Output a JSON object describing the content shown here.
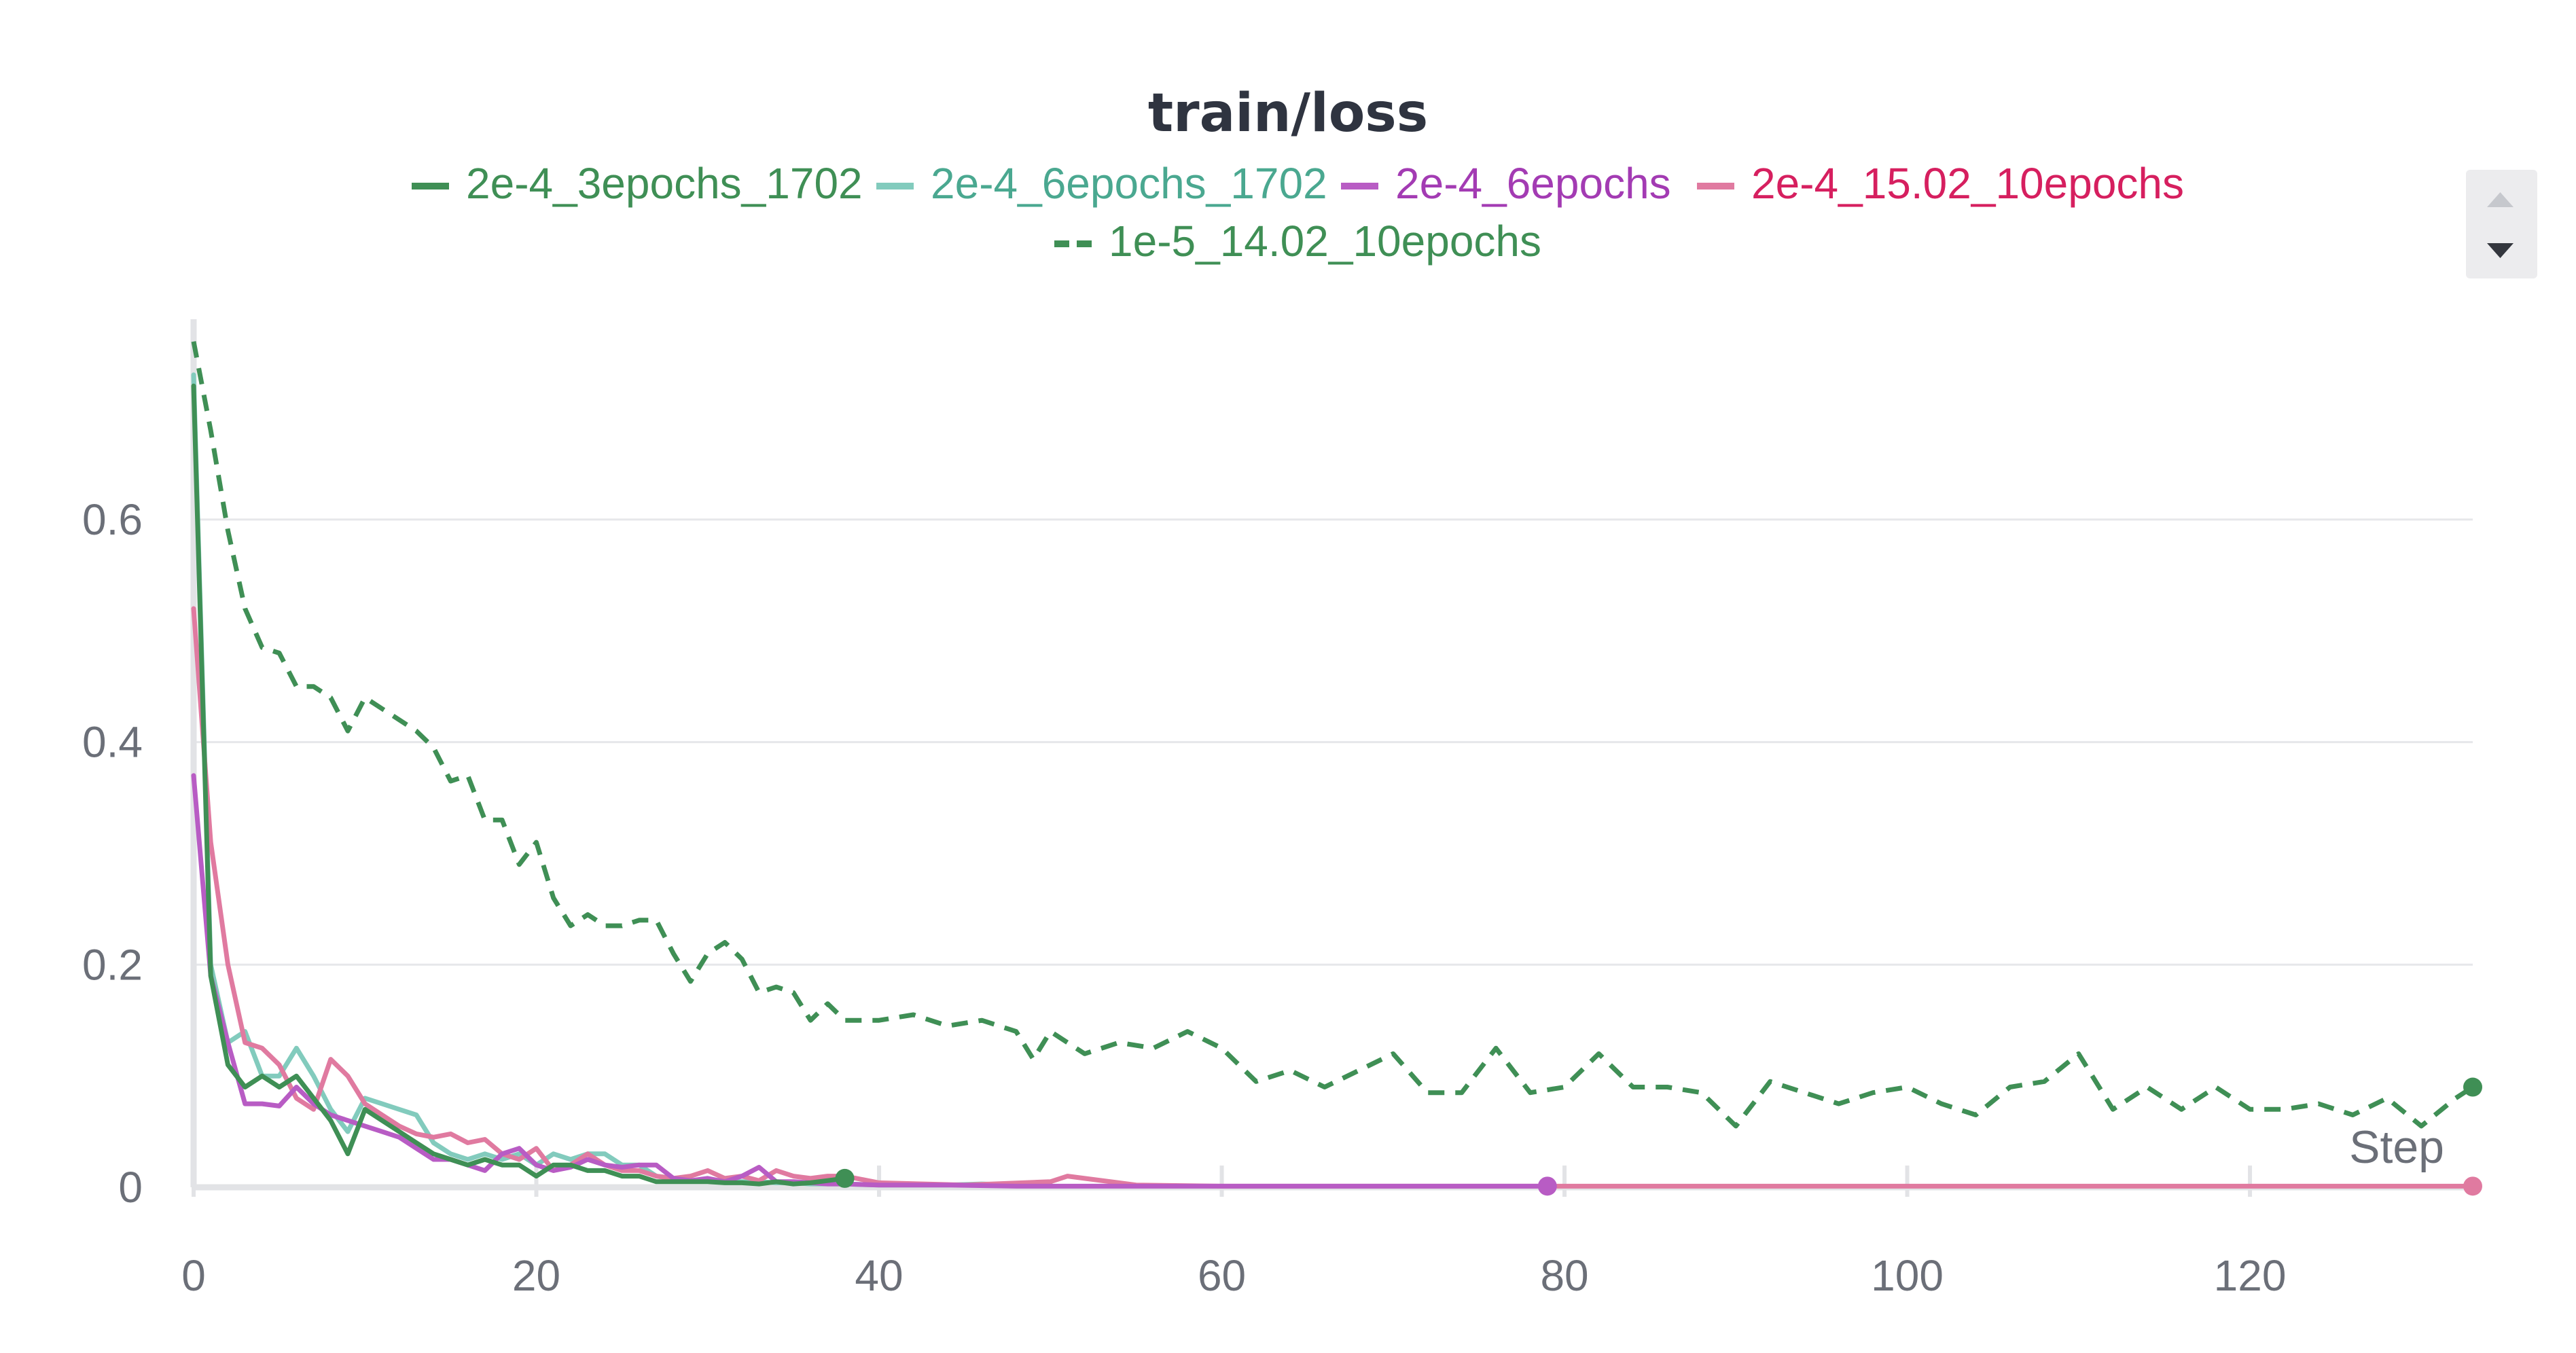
{
  "chart_data": {
    "type": "line",
    "title": "train/loss",
    "xlabel": "Step",
    "ylabel": "",
    "xlim": [
      0,
      133
    ],
    "ylim": [
      0,
      0.78
    ],
    "xticks": [
      0,
      20,
      40,
      60,
      80,
      100,
      120
    ],
    "yticks": [
      0,
      0.2,
      0.4,
      0.6
    ],
    "grid": true,
    "legend_placement": "top",
    "series": [
      {
        "name": "2e-4_3epochs_1702",
        "color": "#3f8f55",
        "label_color": "#3f8f55",
        "dash": "solid",
        "end_marker": true,
        "x": [
          0,
          1,
          2,
          3,
          4,
          5,
          6,
          7,
          8,
          9,
          10,
          11,
          12,
          13,
          14,
          15,
          16,
          17,
          18,
          19,
          20,
          21,
          22,
          23,
          24,
          25,
          26,
          27,
          28,
          29,
          30,
          31,
          32,
          33,
          34,
          35,
          36,
          37,
          38
        ],
        "y": [
          0.72,
          0.19,
          0.11,
          0.09,
          0.1,
          0.09,
          0.1,
          0.08,
          0.06,
          0.03,
          0.07,
          0.06,
          0.05,
          0.04,
          0.03,
          0.025,
          0.02,
          0.025,
          0.02,
          0.02,
          0.01,
          0.02,
          0.02,
          0.015,
          0.015,
          0.01,
          0.01,
          0.005,
          0.005,
          0.005,
          0.005,
          0.004,
          0.004,
          0.003,
          0.005,
          0.003,
          0.004,
          0.006,
          0.008
        ]
      },
      {
        "name": "2e-4_6epochs_1702",
        "color": "#82cbbd",
        "label_color": "#4aa890",
        "dash": "solid",
        "end_marker": false,
        "x": [
          0,
          1,
          2,
          3,
          4,
          5,
          6,
          7,
          8,
          9,
          10,
          11,
          12,
          13,
          14,
          15,
          16,
          17,
          18,
          19,
          20,
          21,
          22,
          23,
          24,
          25,
          26,
          27,
          28,
          29,
          30,
          31,
          32,
          33,
          34,
          35,
          36,
          37,
          38,
          40,
          42,
          44,
          46,
          48,
          50
        ],
        "y": [
          0.73,
          0.2,
          0.13,
          0.14,
          0.1,
          0.1,
          0.125,
          0.1,
          0.07,
          0.05,
          0.08,
          0.075,
          0.07,
          0.065,
          0.04,
          0.03,
          0.025,
          0.03,
          0.025,
          0.03,
          0.02,
          0.03,
          0.025,
          0.03,
          0.03,
          0.02,
          0.02,
          0.01,
          0.008,
          0.006,
          0.006,
          0.005,
          0.005,
          0.005,
          0.004,
          0.004,
          0.003,
          0.003,
          0.003,
          0.002,
          0.002,
          0.002,
          0.003,
          0.002,
          0.002
        ]
      },
      {
        "name": "2e-4_6epochs",
        "color": "#b85cc4",
        "label_color": "#a33bb3",
        "dash": "solid",
        "end_marker": true,
        "x": [
          0,
          1,
          2,
          3,
          4,
          5,
          6,
          7,
          8,
          9,
          10,
          11,
          12,
          13,
          14,
          15,
          16,
          17,
          18,
          19,
          20,
          21,
          22,
          23,
          24,
          25,
          26,
          27,
          28,
          29,
          30,
          31,
          32,
          33,
          34,
          35,
          36,
          37,
          38,
          40,
          44,
          48,
          52,
          56,
          60,
          64,
          68,
          72,
          76,
          79
        ],
        "y": [
          0.37,
          0.19,
          0.13,
          0.075,
          0.075,
          0.073,
          0.09,
          0.075,
          0.065,
          0.06,
          0.055,
          0.05,
          0.045,
          0.035,
          0.025,
          0.025,
          0.02,
          0.015,
          0.03,
          0.035,
          0.02,
          0.015,
          0.018,
          0.025,
          0.02,
          0.018,
          0.02,
          0.02,
          0.008,
          0.006,
          0.008,
          0.005,
          0.01,
          0.018,
          0.005,
          0.005,
          0.004,
          0.003,
          0.003,
          0.002,
          0.002,
          0.001,
          0.001,
          0.001,
          0.001,
          0.001,
          0.001,
          0.001,
          0.001,
          0.001
        ]
      },
      {
        "name": "2e-4_15.02_10epochs",
        "color": "#e07aa0",
        "label_color": "#d61f5f",
        "dash": "solid",
        "end_marker": true,
        "x": [
          0,
          1,
          2,
          3,
          4,
          5,
          6,
          7,
          8,
          9,
          10,
          11,
          12,
          13,
          14,
          15,
          16,
          17,
          18,
          19,
          20,
          21,
          22,
          23,
          24,
          25,
          26,
          27,
          28,
          29,
          30,
          31,
          32,
          33,
          34,
          35,
          36,
          37,
          38,
          40,
          45,
          50,
          51,
          55,
          60,
          70,
          80,
          90,
          100,
          110,
          120,
          133
        ],
        "y": [
          0.52,
          0.31,
          0.2,
          0.13,
          0.125,
          0.11,
          0.08,
          0.07,
          0.115,
          0.1,
          0.075,
          0.065,
          0.055,
          0.048,
          0.045,
          0.048,
          0.04,
          0.043,
          0.03,
          0.025,
          0.035,
          0.015,
          0.02,
          0.03,
          0.02,
          0.015,
          0.015,
          0.01,
          0.008,
          0.01,
          0.015,
          0.008,
          0.01,
          0.006,
          0.015,
          0.01,
          0.008,
          0.01,
          0.01,
          0.004,
          0.002,
          0.005,
          0.01,
          0.002,
          0.001,
          0.001,
          0.001,
          0.001,
          0.001,
          0.001,
          0.001,
          0.001
        ]
      },
      {
        "name": "1e-5_14.02_10epochs",
        "color": "#3f8f55",
        "label_color": "#3f8f55",
        "dash": "dashed",
        "end_marker": true,
        "x": [
          0,
          1,
          2,
          3,
          4,
          5,
          6,
          7,
          8,
          9,
          10,
          11,
          12,
          13,
          14,
          15,
          16,
          17,
          18,
          19,
          20,
          21,
          22,
          23,
          24,
          25,
          26,
          27,
          28,
          29,
          30,
          31,
          32,
          33,
          34,
          35,
          36,
          37,
          38,
          40,
          42,
          44,
          46,
          48,
          49,
          50,
          52,
          54,
          56,
          58,
          60,
          62,
          64,
          66,
          68,
          70,
          72,
          74,
          76,
          78,
          80,
          82,
          84,
          86,
          88,
          90,
          92,
          94,
          96,
          98,
          100,
          102,
          104,
          106,
          108,
          110,
          112,
          114,
          116,
          118,
          120,
          122,
          124,
          126,
          128,
          130,
          132,
          133
        ],
        "y": [
          0.76,
          0.68,
          0.59,
          0.52,
          0.485,
          0.48,
          0.45,
          0.45,
          0.44,
          0.41,
          0.44,
          0.43,
          0.42,
          0.41,
          0.395,
          0.365,
          0.37,
          0.33,
          0.33,
          0.29,
          0.31,
          0.26,
          0.235,
          0.245,
          0.235,
          0.235,
          0.24,
          0.24,
          0.21,
          0.185,
          0.21,
          0.22,
          0.205,
          0.175,
          0.18,
          0.175,
          0.15,
          0.165,
          0.15,
          0.15,
          0.155,
          0.145,
          0.15,
          0.14,
          0.115,
          0.14,
          0.12,
          0.13,
          0.125,
          0.14,
          0.125,
          0.095,
          0.105,
          0.09,
          0.105,
          0.12,
          0.085,
          0.085,
          0.125,
          0.085,
          0.09,
          0.12,
          0.09,
          0.09,
          0.085,
          0.055,
          0.095,
          0.085,
          0.075,
          0.085,
          0.09,
          0.075,
          0.065,
          0.09,
          0.095,
          0.12,
          0.07,
          0.09,
          0.07,
          0.09,
          0.07,
          0.07,
          0.075,
          0.065,
          0.08,
          0.055,
          0.08,
          0.09
        ]
      }
    ]
  },
  "legend_scroll": {
    "up_icon": "triangle-up-icon",
    "down_icon": "triangle-down-icon"
  }
}
